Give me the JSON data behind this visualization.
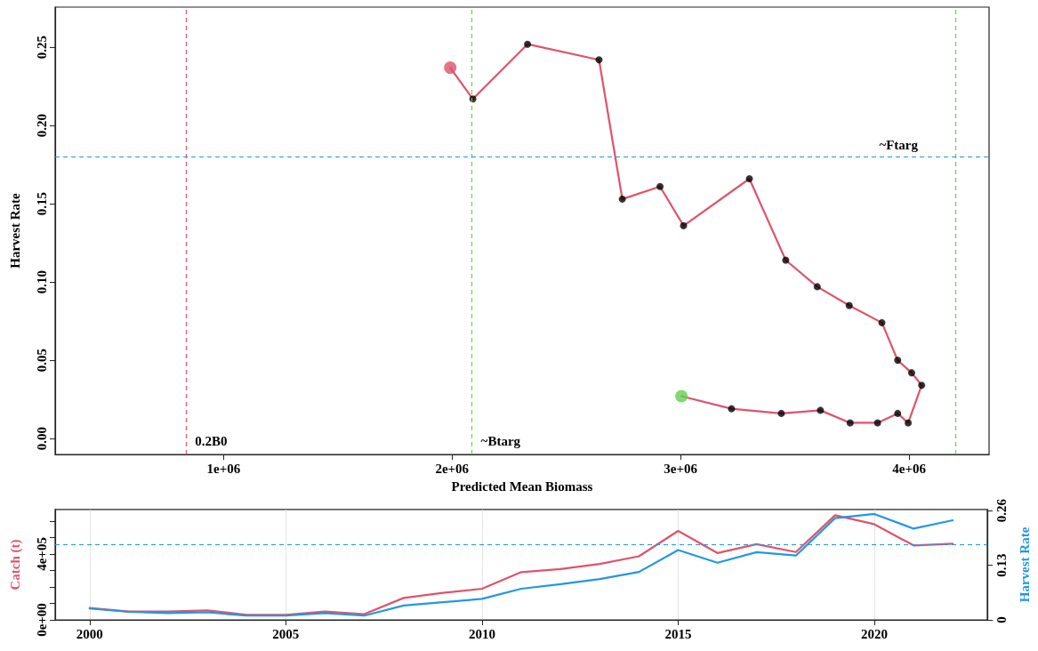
{
  "chart_data": [
    {
      "type": "line",
      "xlabel": "Predicted Mean Biomass",
      "ylabel": "Harvest Rate",
      "xlim": [
        263000,
        4350000
      ],
      "xticks": [
        {
          "value": 1000000,
          "label": "1e+06"
        },
        {
          "value": 2000000,
          "label": "2e+06"
        },
        {
          "value": 3000000,
          "label": "3e+06"
        },
        {
          "value": 4000000,
          "label": "4e+06"
        }
      ],
      "ylim": [
        -0.0102,
        0.2757
      ],
      "yticks": [
        {
          "value": 0,
          "label": "0.00"
        },
        {
          "value": 0.05,
          "label": "0.05"
        },
        {
          "value": 0.1,
          "label": "0.10"
        },
        {
          "value": 0.15,
          "label": "0.15"
        },
        {
          "value": 0.2,
          "label": "0.20"
        },
        {
          "value": 0.25,
          "label": "0.25"
        }
      ],
      "series": [
        {
          "type": "line",
          "color": "#df536b",
          "marker": "none",
          "x": [
            3004000,
            3223000,
            3441000,
            3612000,
            3742000,
            3862000,
            3950000,
            3996000,
            4055000,
            4011000,
            3950000,
            3881000,
            3738000,
            3598000,
            3460000,
            3301000,
            3013000,
            2910000,
            2745000,
            2643000,
            2330000,
            2091000,
            1992000
          ],
          "values": [
            0.027,
            0.019,
            0.016,
            0.018,
            0.01,
            0.01,
            0.016,
            0.01,
            0.034,
            0.042,
            0.05,
            0.074,
            0.085,
            0.097,
            0.114,
            0.166,
            0.136,
            0.161,
            0.153,
            0.242,
            0.252,
            0.217,
            0.237
          ]
        },
        {
          "type": "scatter",
          "color": "#000000",
          "marker": "circle",
          "x": [
            3223000,
            3441000,
            3612000,
            3742000,
            3862000,
            3950000,
            3996000,
            4055000,
            4011000,
            3950000,
            3881000,
            3738000,
            3598000,
            3460000,
            3301000,
            3013000,
            2910000,
            2745000,
            2643000,
            2330000,
            2091000
          ],
          "values": [
            0.019,
            0.016,
            0.018,
            0.01,
            0.01,
            0.016,
            0.01,
            0.034,
            0.042,
            0.05,
            0.074,
            0.085,
            0.097,
            0.114,
            0.166,
            0.136,
            0.161,
            0.153,
            0.242,
            0.252,
            0.217
          ]
        },
        {
          "type": "scatter",
          "color": "#61d04f",
          "marker": "circle",
          "x": [
            3004000
          ],
          "values": [
            0.027
          ]
        },
        {
          "type": "scatter",
          "color": "#df536b",
          "marker": "circle",
          "x": [
            1992000
          ],
          "values": [
            0.237
          ]
        }
      ],
      "ref_lines": [
        {
          "axis": "x",
          "value": 836000,
          "label": "0.2B0",
          "color": "#df536b",
          "line_style": "dashed"
        },
        {
          "axis": "x",
          "value": 2087000,
          "label": "~Btarg",
          "color": "#61d04f",
          "line_style": "dashed"
        },
        {
          "axis": "x",
          "value": 4202000,
          "color": "#61d04f",
          "line_style": "dashed"
        },
        {
          "axis": "y",
          "value": 0.181,
          "label": "~Ftarg",
          "color": "#2297e6",
          "line_style": "dashed"
        }
      ],
      "grid": false
    },
    {
      "type": "line",
      "ylabel": "Catch (t)",
      "y2label": "Harvest Rate",
      "x": [
        2000,
        2001,
        2002,
        2003,
        2004,
        2005,
        2006,
        2007,
        2008,
        2009,
        2010,
        2011,
        2012,
        2013,
        2014,
        2015,
        2016,
        2017,
        2018,
        2019,
        2020,
        2021,
        2022
      ],
      "xlim": [
        1999.12,
        2022.88
      ],
      "xticks": [
        2000,
        2005,
        2010,
        2015,
        2020
      ],
      "ylim": [
        0,
        670000
      ],
      "yticks": [
        {
          "value": 0,
          "label": "0e+00"
        },
        {
          "value": 100000,
          "label": null
        },
        {
          "value": 200000,
          "label": null
        },
        {
          "value": 300000,
          "label": null
        },
        {
          "value": 400000,
          "label": "4e+05"
        },
        {
          "value": 500000,
          "label": null
        },
        {
          "value": 600000,
          "label": null
        }
      ],
      "y2lim": [
        0,
        0.2625
      ],
      "y2ticks": [
        0,
        0.13,
        0.26
      ],
      "series": [
        {
          "color": "#df536b",
          "values": [
            72000,
            51000,
            51000,
            57000,
            31000,
            31000,
            51000,
            35000,
            133000,
            164000,
            189000,
            290000,
            309000,
            340000,
            386000,
            540000,
            406000,
            460000,
            412000,
            635000,
            581000,
            452000,
            462000
          ]
        },
        {
          "color": "#2297e6",
          "axis": "y2",
          "values": [
            0.027,
            0.019,
            0.016,
            0.018,
            0.01,
            0.01,
            0.016,
            0.01,
            0.034,
            0.042,
            0.05,
            0.074,
            0.085,
            0.097,
            0.114,
            0.166,
            0.136,
            0.161,
            0.153,
            0.242,
            0.252,
            0.217,
            0.237
          ]
        }
      ],
      "ref_lines": [
        {
          "axis": "y2",
          "value": 0.181,
          "color": "#2297e6",
          "line_style": "dashed"
        }
      ],
      "grid": "x",
      "marker": "none",
      "line_style": "solid"
    }
  ]
}
